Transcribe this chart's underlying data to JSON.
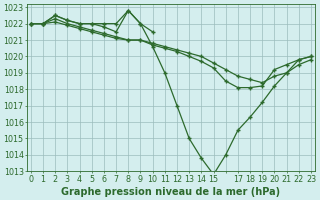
{
  "lines": [
    {
      "x": [
        0,
        1,
        2,
        3,
        4,
        5,
        6,
        7,
        8,
        9,
        10
      ],
      "y": [
        1022.0,
        1022.0,
        1022.5,
        1022.2,
        1022.0,
        1022.0,
        1022.0,
        1022.0,
        1022.8,
        1022.0,
        1021.5
      ]
    },
    {
      "x": [
        0,
        1,
        2,
        3,
        4,
        5,
        6,
        7,
        8,
        9,
        10,
        11,
        12,
        13,
        14,
        15,
        16,
        17,
        18,
        19,
        20,
        21,
        22,
        23
      ],
      "y": [
        1022.0,
        1022.0,
        1022.5,
        1022.2,
        1022.0,
        1022.0,
        1021.8,
        1021.5,
        1022.8,
        1022.0,
        1020.6,
        1019.0,
        1017.0,
        1015.0,
        1013.8,
        1012.8,
        1014.0,
        1015.5,
        1016.3,
        1017.2,
        1018.2,
        1019.0,
        1019.8,
        1020.0
      ]
    },
    {
      "x": [
        0,
        1,
        2,
        3,
        4,
        5,
        6,
        7,
        8,
        9,
        10,
        11,
        12,
        13,
        14,
        15,
        16,
        17,
        18,
        19,
        20,
        21,
        22,
        23
      ],
      "y": [
        1022.0,
        1022.0,
        1022.3,
        1022.0,
        1021.8,
        1021.6,
        1021.4,
        1021.2,
        1021.0,
        1021.0,
        1020.7,
        1020.5,
        1020.3,
        1020.0,
        1019.7,
        1019.3,
        1018.5,
        1018.1,
        1018.1,
        1018.2,
        1019.2,
        1019.5,
        1019.8,
        1020.0
      ]
    },
    {
      "x": [
        0,
        1,
        2,
        3,
        4,
        5,
        6,
        7,
        8,
        9,
        10,
        11,
        12,
        13,
        14,
        15,
        16,
        17,
        18,
        19,
        20,
        21,
        22,
        23
      ],
      "y": [
        1022.0,
        1022.0,
        1022.1,
        1021.9,
        1021.7,
        1021.5,
        1021.3,
        1021.1,
        1021.0,
        1021.0,
        1020.8,
        1020.6,
        1020.4,
        1020.2,
        1020.0,
        1019.6,
        1019.2,
        1018.8,
        1018.6,
        1018.4,
        1018.8,
        1019.0,
        1019.5,
        1019.8
      ]
    }
  ],
  "line_color": "#2d6a2d",
  "marker": "+",
  "markersize": 3.5,
  "linewidth": 0.9,
  "markeredgewidth": 1.0,
  "bg_color": "#d4eeee",
  "grid_color": "#9bbcbc",
  "xlim": [
    -0.3,
    23.3
  ],
  "ylim": [
    1013.0,
    1023.2
  ],
  "yticks": [
    1013,
    1014,
    1015,
    1016,
    1017,
    1018,
    1019,
    1020,
    1021,
    1022,
    1023
  ],
  "xtick_labels": [
    "0",
    "1",
    "2",
    "3",
    "4",
    "5",
    "6",
    "7",
    "8",
    "9",
    "10",
    "11",
    "12",
    "13",
    "14",
    "15",
    "",
    "17",
    "18",
    "19",
    "20",
    "21",
    "22",
    "23"
  ],
  "xlabel": "Graphe pression niveau de la mer (hPa)",
  "xlabel_fontsize": 7.0,
  "tick_fontsize": 5.8,
  "ytick_fontsize": 5.8
}
